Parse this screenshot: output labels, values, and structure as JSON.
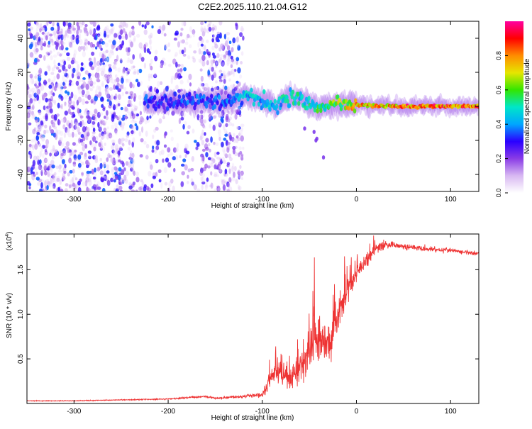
{
  "title": "C2E2.2025.110.21.04.G12",
  "chart_data": [
    {
      "type": "heatmap",
      "xlabel": "Height of straight line (km)",
      "ylabel": "Frequency (Hz)",
      "xlim": [
        -350,
        130
      ],
      "ylim": [
        -50,
        50
      ],
      "x_ticks": [
        -300,
        -200,
        -100,
        0,
        100
      ],
      "x_tick_labels": [
        "-300",
        "-200",
        "-100",
        "0",
        "100"
      ],
      "y_ticks": [
        -40,
        -20,
        0,
        20,
        40
      ],
      "y_tick_labels": [
        "-40",
        "-20",
        "0",
        "20",
        "40"
      ],
      "colorbar": {
        "label": "Normalized spectral amplitude",
        "range": [
          0,
          1
        ],
        "ticks": [
          0.0,
          0.2,
          0.4,
          0.6,
          0.8
        ],
        "tick_labels": [
          "0.0",
          "0.2",
          "0.4",
          "0.6",
          "0.8"
        ],
        "colors": [
          "#ffffff",
          "#d8b8f2",
          "#8a3ce6",
          "#2a00ff",
          "#00a6ff",
          "#00e6c8",
          "#33e600",
          "#e6e600",
          "#ff8c00",
          "#ff0000",
          "#ff00a0"
        ]
      },
      "noise_region_x": [
        -350,
        -120
      ],
      "signal_track": [
        {
          "x": -225,
          "freq": 3,
          "amp": 0.35
        },
        {
          "x": -200,
          "freq": 2,
          "amp": 0.3
        },
        {
          "x": -175,
          "freq": 3,
          "amp": 0.35
        },
        {
          "x": -140,
          "freq": 3,
          "amp": 0.35
        },
        {
          "x": -115,
          "freq": 6,
          "amp": 0.45
        },
        {
          "x": -100,
          "freq": 3,
          "amp": 0.45
        },
        {
          "x": -85,
          "freq": 0,
          "amp": 0.45
        },
        {
          "x": -70,
          "freq": 6,
          "amp": 0.5
        },
        {
          "x": -55,
          "freq": 3,
          "amp": 0.5
        },
        {
          "x": -40,
          "freq": -1,
          "amp": 0.55
        },
        {
          "x": -20,
          "freq": 1,
          "amp": 0.65
        },
        {
          "x": 0,
          "freq": 1,
          "amp": 0.75
        },
        {
          "x": 50,
          "freq": 0,
          "amp": 0.85
        },
        {
          "x": 130,
          "freq": 0,
          "amp": 0.85
        }
      ]
    },
    {
      "type": "line",
      "xlabel": "Height of straight line (km)",
      "ylabel": "SNR (10 * v/v)",
      "y_scale_label": "(x10",
      "y_scale_exponent": "4",
      "y_scale_suffix": ")",
      "xlim": [
        -350,
        130
      ],
      "ylim": [
        0,
        19000
      ],
      "x_ticks": [
        -300,
        -200,
        -100,
        0,
        100
      ],
      "x_tick_labels": [
        "-300",
        "-200",
        "-100",
        "0",
        "100"
      ],
      "y_ticks": [
        5000,
        10000,
        15000
      ],
      "y_tick_labels": [
        "0.5",
        "1.0",
        "1.5"
      ],
      "color": "#ee3333",
      "series": [
        {
          "x": [
            -350,
            -300,
            -250,
            -200,
            -160,
            -150,
            -120,
            -100,
            -90,
            -80,
            -70,
            -60,
            -50,
            -45,
            -40,
            -30,
            -20,
            -10,
            0,
            10,
            20,
            30,
            40,
            50,
            60,
            70,
            80,
            90,
            100,
            110,
            120,
            130
          ],
          "values": [
            300,
            300,
            400,
            500,
            800,
            600,
            800,
            1000,
            3000,
            3500,
            2500,
            4000,
            5500,
            8000,
            7000,
            6500,
            9500,
            12500,
            14500,
            16000,
            17200,
            17800,
            17800,
            17600,
            17500,
            17400,
            17300,
            17200,
            17200,
            17000,
            16900,
            16800
          ],
          "noise": [
            50,
            50,
            60,
            80,
            150,
            120,
            200,
            400,
            1500,
            1500,
            1300,
            2000,
            2500,
            3000,
            3000,
            3000,
            2500,
            1700,
            1200,
            900,
            700,
            500,
            400,
            400,
            350,
            350,
            350,
            350,
            300,
            300,
            300,
            300
          ]
        }
      ]
    }
  ]
}
